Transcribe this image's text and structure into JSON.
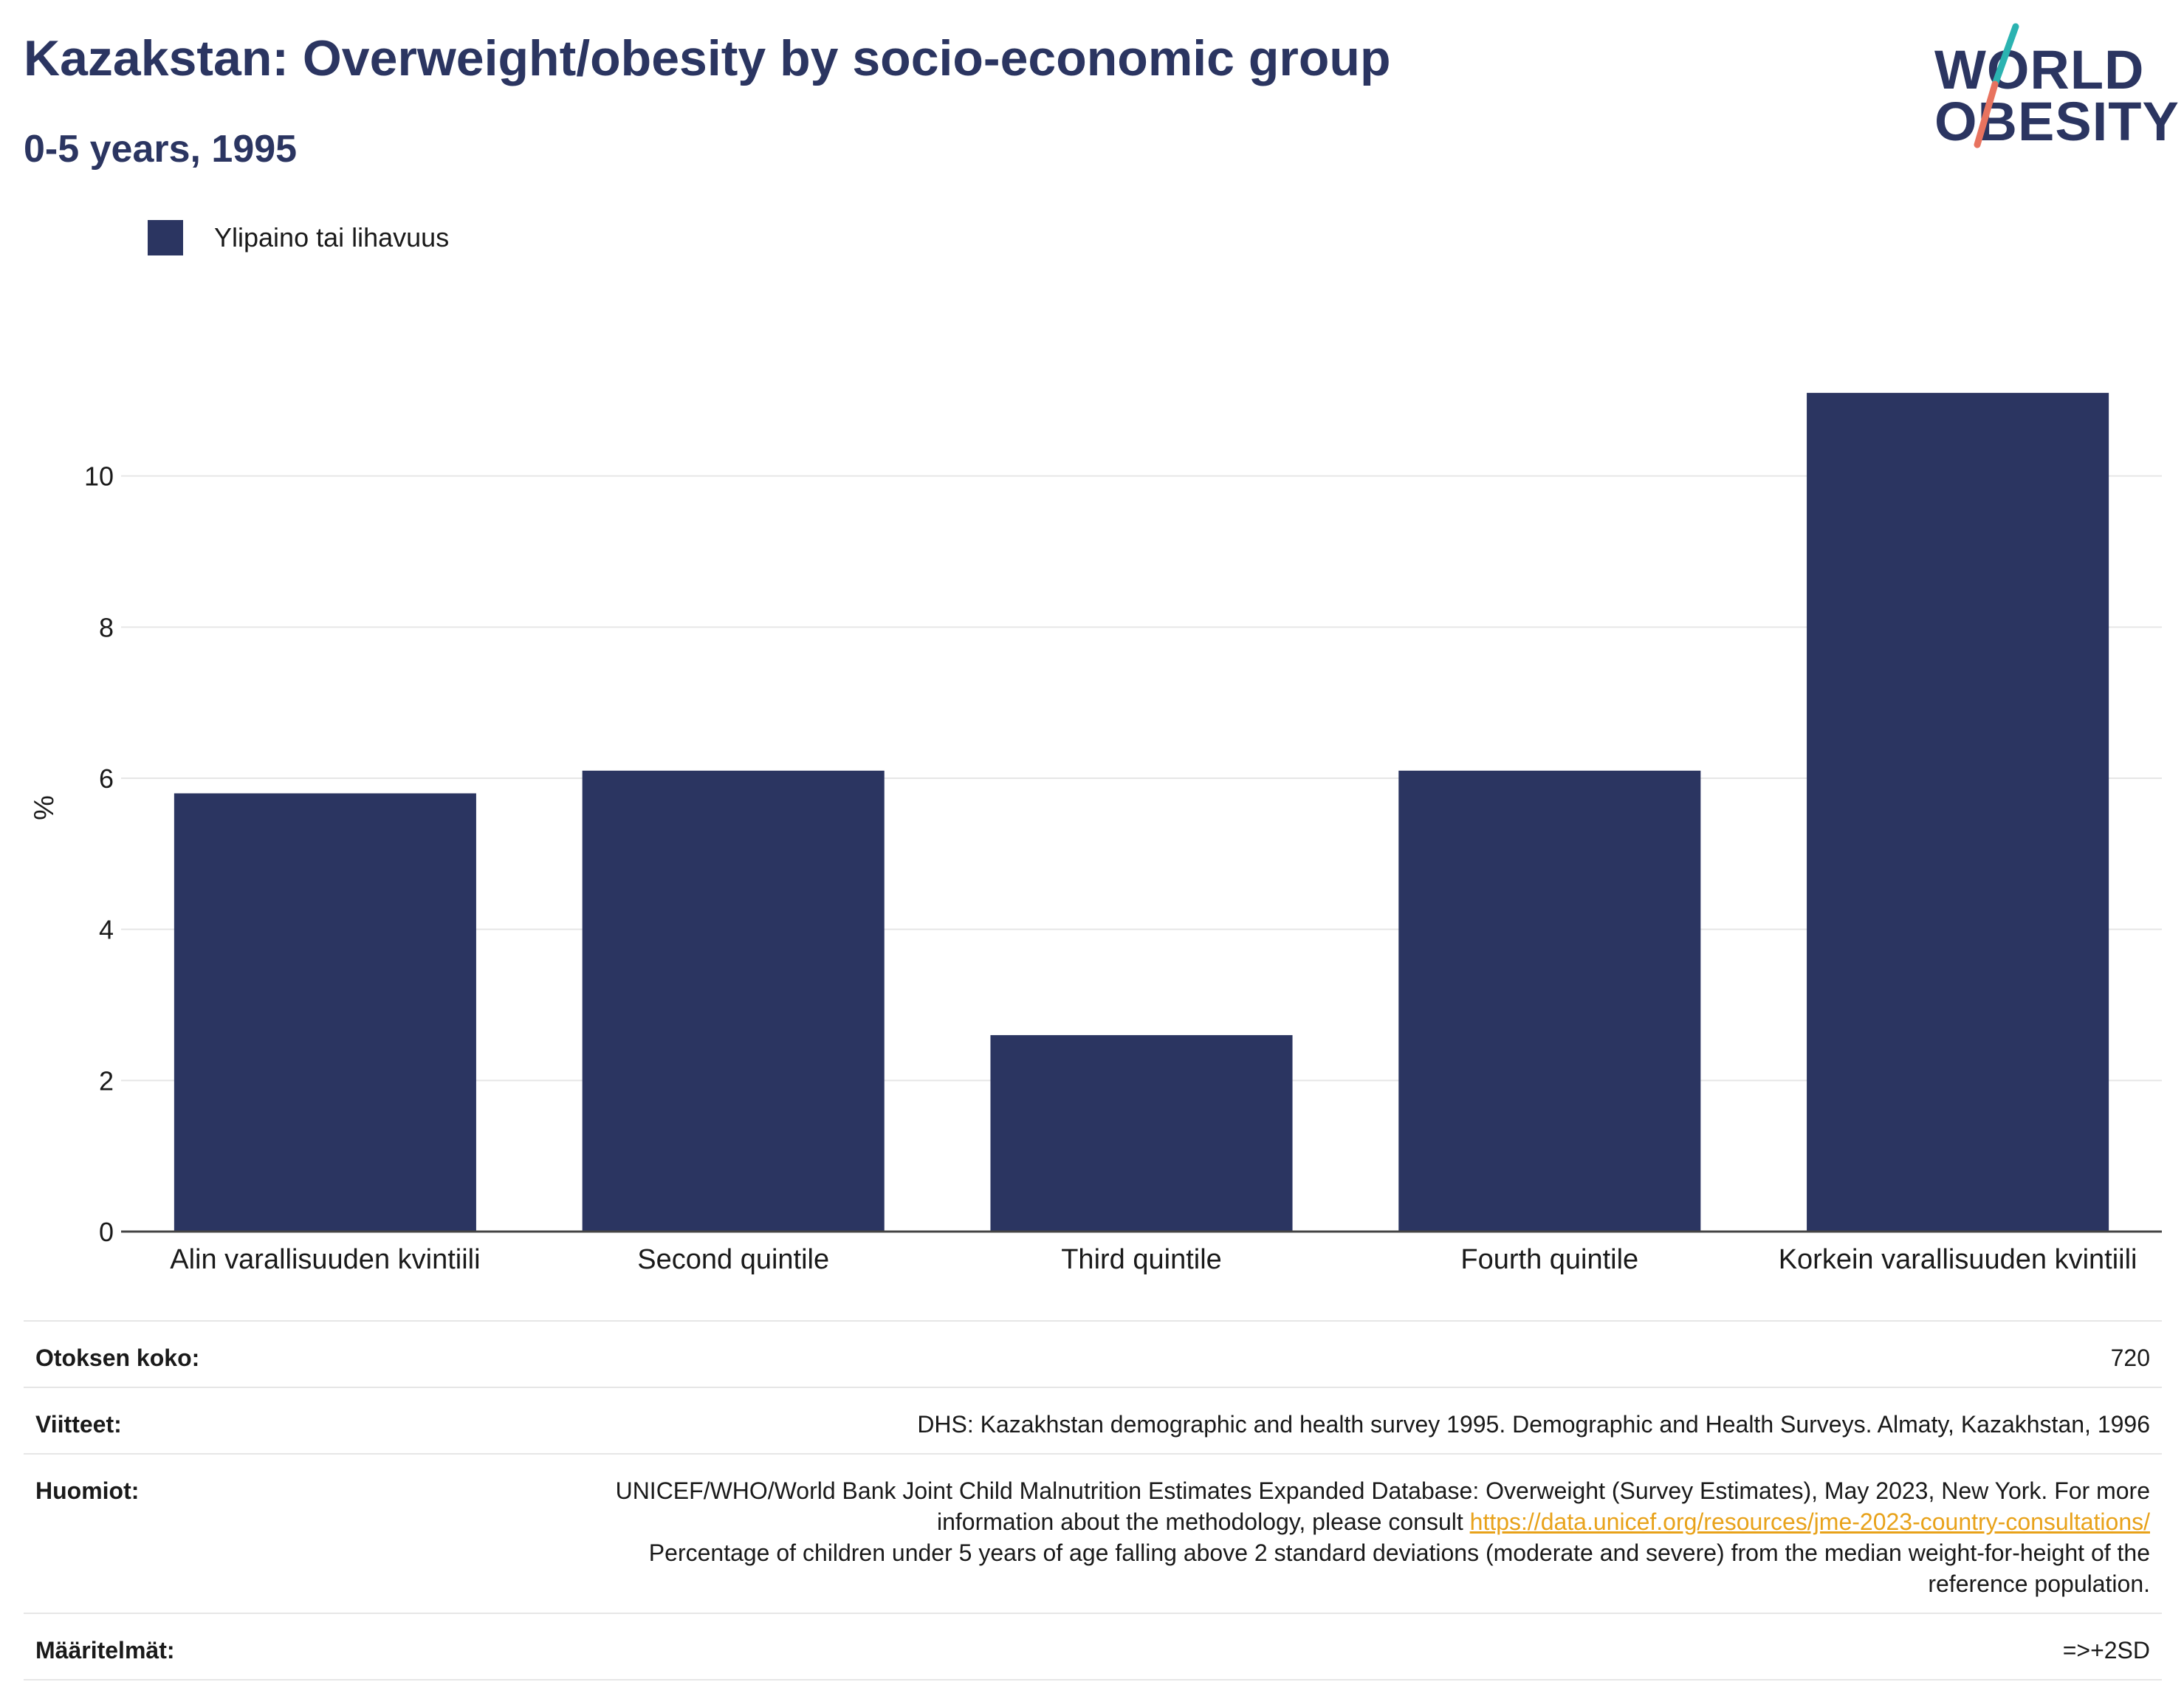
{
  "header": {
    "title": "Kazakstan: Overweight/obesity by socio-economic group",
    "subtitle": "0-5 years, 1995"
  },
  "logo": {
    "line1": "WORLD",
    "line2": "OBESITY",
    "accent_teal": "#2bb3b1",
    "accent_coral": "#e8735f"
  },
  "chart_data": {
    "type": "bar",
    "categories": [
      "Alin varallisuuden kvintiili",
      "Second quintile",
      "Third quintile",
      "Fourth quintile",
      "Korkein varallisuuden kvintiili"
    ],
    "series": [
      {
        "name": "Ylipaino tai lihavuus",
        "values": [
          5.8,
          6.1,
          2.6,
          6.1,
          11.1
        ],
        "color": "#2b3561"
      }
    ],
    "ylabel": "%",
    "ylim": [
      0,
      12
    ],
    "yticks": [
      0,
      2,
      4,
      6,
      8,
      10
    ],
    "grid": true,
    "legend": "top-left"
  },
  "info": {
    "sample_size_label": "Otoksen koko:",
    "sample_size_value": "720",
    "references_label": "Viitteet:",
    "references_value": "DHS: Kazakhstan demographic and health survey 1995. Demographic and Health Surveys. Almaty, Kazakhstan, 1996",
    "notes_label": "Huomiot:",
    "notes_text_before": "UNICEF/WHO/World Bank Joint Child Malnutrition Estimates Expanded Database: Overweight (Survey Estimates), May 2023, New York. For more information about the methodology, please consult ",
    "notes_link": "https://data.unicef.org/resources/jme-2023-country-consultations/",
    "notes_text_after": "Percentage of children under 5 years of age falling above 2 standard deviations (moderate and severe) from the median weight-for-height of the reference population.",
    "definitions_label": "Määritelmät:",
    "definitions_value": "=>+2SD"
  }
}
